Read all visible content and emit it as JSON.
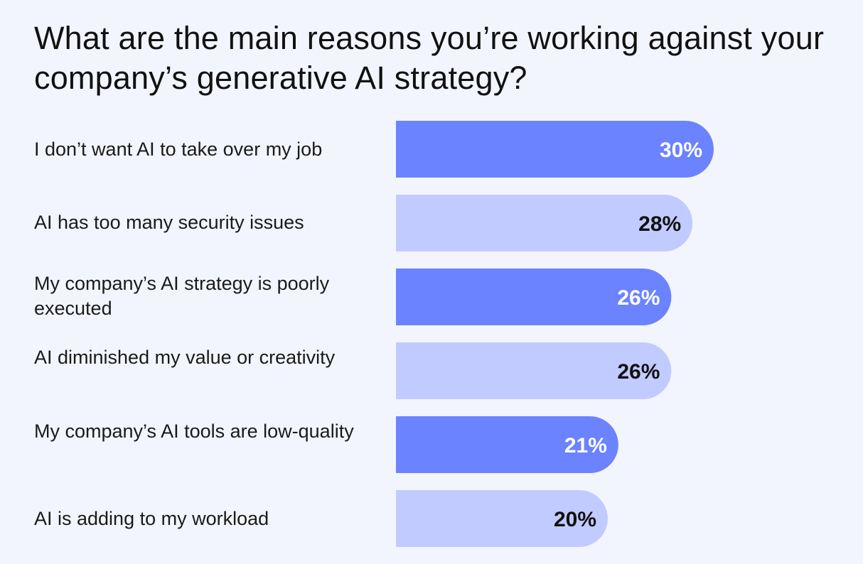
{
  "chart_data": {
    "type": "bar",
    "orientation": "horizontal",
    "title": "What are the main reasons you’re working against your company’s generative AI strategy?",
    "categories": [
      "I don’t want AI to take over my job",
      "AI has too many security issues",
      "My company’s AI strategy is poorly executed",
      "AI diminished my value or creativity",
      "My company’s AI tools are low-quality",
      "AI is adding to my workload"
    ],
    "values": [
      30,
      28,
      26,
      26,
      21,
      20
    ],
    "value_labels": [
      "30%",
      "28%",
      "26%",
      "26%",
      "21%",
      "20%"
    ],
    "unit": "%",
    "colors": {
      "dark_bar": "#6b83ff",
      "light_bar": "#c2cbff",
      "dark_label": "#ffffff",
      "light_label": "#111111",
      "background": "#f3f5fe"
    },
    "bar_color_pattern": [
      "dark",
      "light",
      "dark",
      "light",
      "dark",
      "light"
    ],
    "grid": false,
    "legend": "none"
  }
}
